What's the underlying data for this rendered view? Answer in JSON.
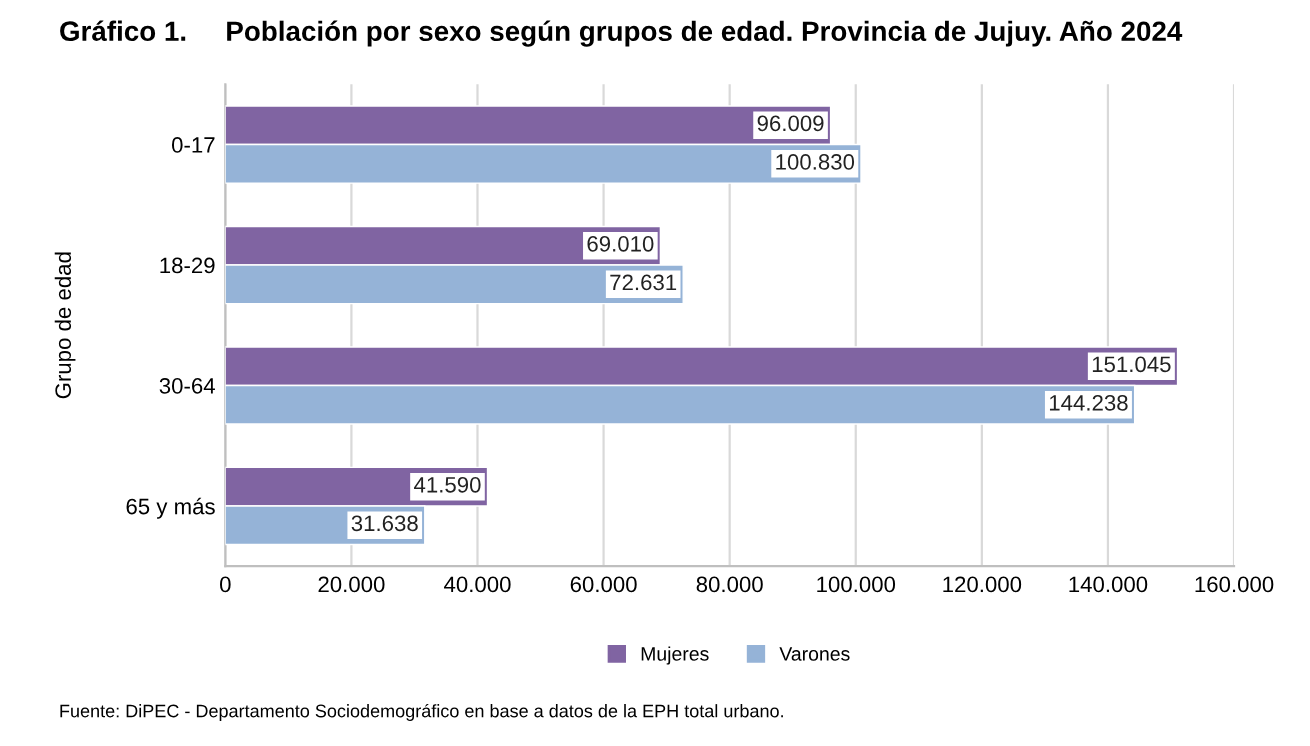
{
  "chart_data": {
    "type": "bar",
    "orientation": "horizontal",
    "title": "Gráfico 1.",
    "subtitle": "Población por sexo según grupos de edad. Provincia de Jujuy. Año 2024",
    "ylabel": "Grupo de edad",
    "categories": [
      "0-17",
      "18-29",
      "30-64",
      "65 y más"
    ],
    "series": [
      {
        "name": "Mujeres",
        "color": "#8064a2",
        "values": [
          96009,
          69010,
          151045,
          41590
        ],
        "value_labels": [
          "96.009",
          "69.010",
          "151.045",
          "41.590"
        ]
      },
      {
        "name": "Varones",
        "color": "#95b3d7",
        "values": [
          100830,
          72631,
          144238,
          31638
        ],
        "value_labels": [
          "100.830",
          "72.631",
          "144.238",
          "31.638"
        ]
      }
    ],
    "xlim": [
      0,
      160000
    ],
    "xticks": [
      0,
      {
        "value": 20000,
        "label": "20.000"
      },
      {
        "value": 40000,
        "label": "40.000"
      },
      {
        "value": 60000,
        "label": "60.000"
      },
      {
        "value": 80000,
        "label": "80.000"
      },
      {
        "value": 100000,
        "label": "100.000"
      },
      {
        "value": 120000,
        "label": "120.000"
      },
      {
        "value": 140000,
        "label": "140.000"
      },
      {
        "value": 160000,
        "label": "160.000"
      }
    ],
    "grid": "x",
    "legend": "bottom",
    "annotations": [
      "Fuente: DiPEC - Departamento Sociodemográfico en base a datos de la EPH total urbano."
    ]
  }
}
